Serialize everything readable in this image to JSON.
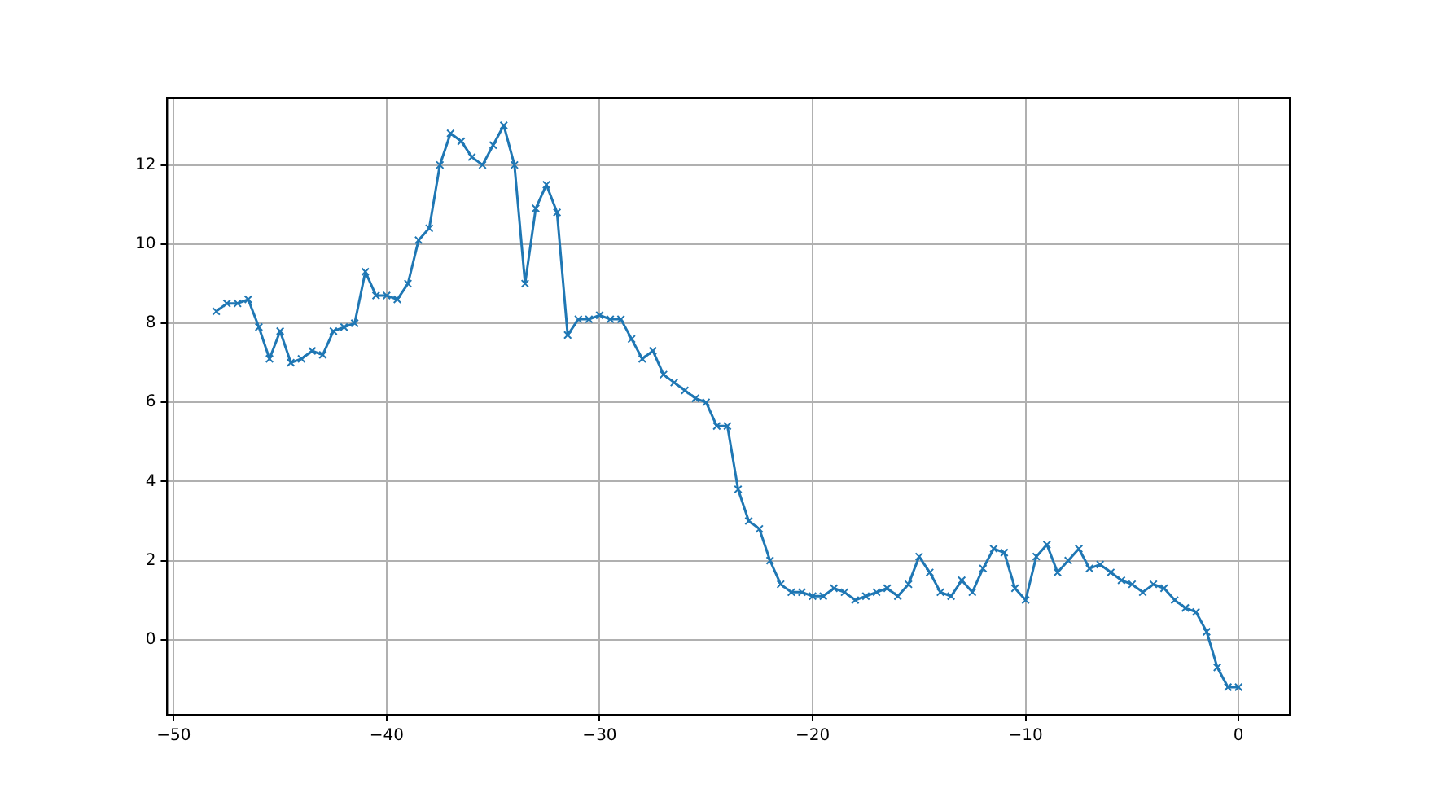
{
  "chart_data": {
    "type": "line",
    "x": [
      -48,
      -47.5,
      -47,
      -46.5,
      -46,
      -45.5,
      -45,
      -44.5,
      -44,
      -43.5,
      -43,
      -42.5,
      -42,
      -41.5,
      -41,
      -40.5,
      -40,
      -39.5,
      -39,
      -38.5,
      -38,
      -37.5,
      -37,
      -36.5,
      -36,
      -35.5,
      -35,
      -34.5,
      -34,
      -33.5,
      -33,
      -32.5,
      -32,
      -31.5,
      -31,
      -30.5,
      -30,
      -29.5,
      -29,
      -28.5,
      -28,
      -27.5,
      -27,
      -26.5,
      -26,
      -25.5,
      -25,
      -24.5,
      -24,
      -23.5,
      -23,
      -22.5,
      -22,
      -21.5,
      -21,
      -20.5,
      -20,
      -19.5,
      -19,
      -18.5,
      -18,
      -17.5,
      -17,
      -16.5,
      -16,
      -15.5,
      -15,
      -14.5,
      -14,
      -13.5,
      -13,
      -12.5,
      -12,
      -11.5,
      -11,
      -10.5,
      -10,
      -9.5,
      -9,
      -8.5,
      -8,
      -7.5,
      -7,
      -6.5,
      -6,
      -5.5,
      -5,
      -4.5,
      -4,
      -3.5,
      -3,
      -2.5,
      -2,
      -1.5,
      -1,
      -0.5,
      0
    ],
    "series": [
      {
        "color": "#1f77b4",
        "values": [
          8.3,
          8.5,
          8.5,
          8.6,
          7.9,
          7.1,
          7.8,
          7.0,
          7.1,
          7.3,
          7.2,
          7.8,
          7.9,
          8.0,
          9.3,
          8.7,
          8.7,
          8.6,
          9.0,
          10.1,
          10.4,
          12.0,
          12.8,
          12.6,
          12.2,
          12.0,
          12.5,
          13.0,
          12.0,
          9.0,
          10.9,
          11.5,
          10.8,
          7.7,
          8.1,
          8.1,
          8.2,
          8.1,
          8.1,
          7.6,
          7.1,
          7.3,
          6.7,
          6.5,
          6.3,
          6.1,
          6.0,
          5.4,
          5.4,
          3.8,
          3.0,
          2.8,
          2.0,
          1.4,
          1.2,
          1.2,
          1.1,
          1.1,
          1.3,
          1.2,
          1.0,
          1.1,
          1.2,
          1.3,
          1.1,
          1.4,
          2.1,
          1.7,
          1.2,
          1.1,
          1.5,
          1.2,
          1.8,
          2.3,
          2.2,
          1.3,
          1.0,
          2.1,
          2.4,
          1.7,
          2.0,
          2.3,
          1.8,
          1.9,
          1.7,
          1.5,
          1.4,
          1.2,
          1.4,
          1.3,
          1.0,
          0.8,
          0.7,
          0.2,
          -0.7,
          -1.2,
          -1.2
        ]
      }
    ],
    "xlim": [
      -50.3,
      2.4
    ],
    "xticks": [
      -50,
      -40,
      -30,
      -20,
      -10,
      0
    ],
    "ylim": [
      -1.9,
      13.7
    ],
    "yticks": [
      0,
      2,
      4,
      6,
      8,
      10,
      12
    ],
    "grid": true,
    "marker": "cross",
    "line_style": "solid",
    "legend": false
  }
}
